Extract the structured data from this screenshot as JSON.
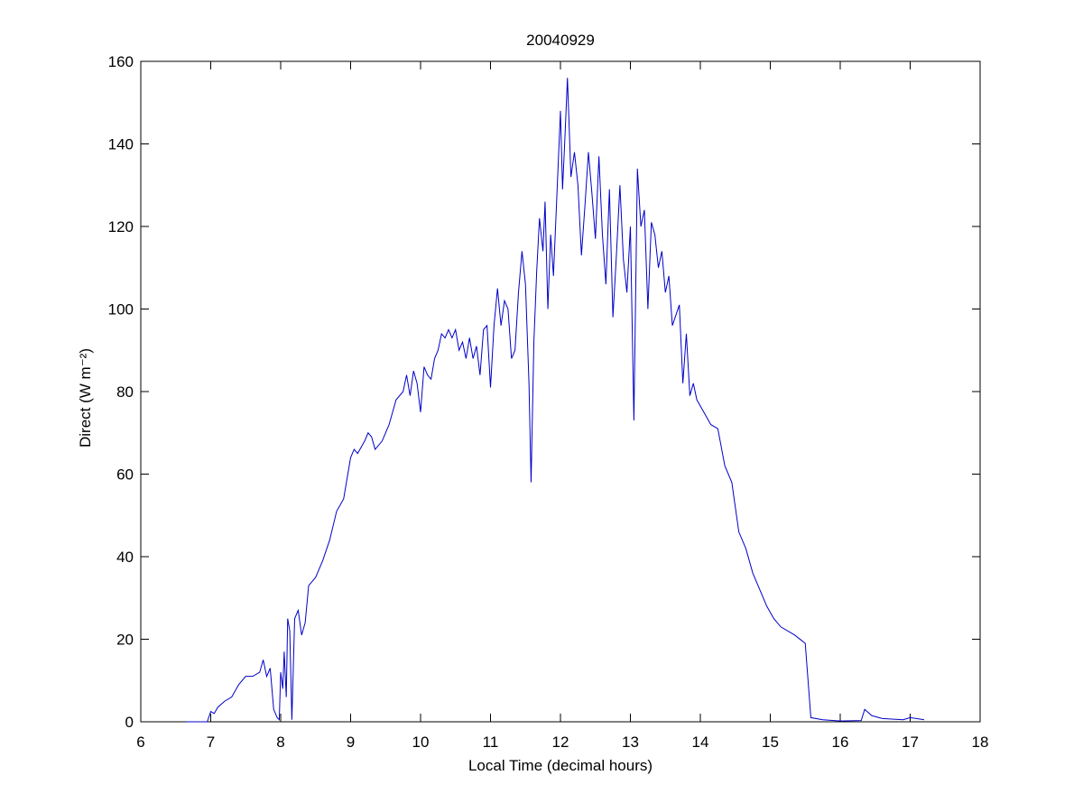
{
  "chart_data": {
    "type": "line",
    "title": "20040929",
    "x_label": "Local Time (decimal hours)",
    "y_label": "Direct (W m⁻²)",
    "xlim": [
      6,
      18
    ],
    "ylim": [
      0,
      160
    ],
    "xticks": [
      6,
      7,
      8,
      9,
      10,
      11,
      12,
      13,
      14,
      15,
      16,
      17,
      18
    ],
    "yticks": [
      0,
      20,
      40,
      60,
      80,
      100,
      120,
      140,
      160
    ],
    "grid": false,
    "series": [
      {
        "color": "#0000c8",
        "x": [
          6.65,
          6.95,
          7.0,
          7.05,
          7.1,
          7.2,
          7.3,
          7.4,
          7.5,
          7.6,
          7.7,
          7.75,
          7.8,
          7.85,
          7.9,
          7.95,
          7.98,
          8.0,
          8.03,
          8.05,
          8.08,
          8.1,
          8.13,
          8.16,
          8.2,
          8.25,
          8.3,
          8.35,
          8.4,
          8.5,
          8.6,
          8.7,
          8.8,
          8.9,
          9.0,
          9.05,
          9.1,
          9.2,
          9.25,
          9.3,
          9.35,
          9.45,
          9.55,
          9.65,
          9.75,
          9.8,
          9.85,
          9.9,
          9.95,
          10.0,
          10.05,
          10.1,
          10.15,
          10.2,
          10.25,
          10.3,
          10.35,
          10.4,
          10.45,
          10.5,
          10.55,
          10.6,
          10.65,
          10.7,
          10.75,
          10.8,
          10.85,
          10.9,
          10.95,
          11.0,
          11.05,
          11.1,
          11.15,
          11.2,
          11.25,
          11.3,
          11.35,
          11.4,
          11.45,
          11.5,
          11.55,
          11.58,
          11.62,
          11.66,
          11.7,
          11.75,
          11.78,
          11.82,
          11.86,
          11.9,
          11.95,
          12.0,
          12.03,
          12.06,
          12.1,
          12.15,
          12.2,
          12.25,
          12.3,
          12.35,
          12.4,
          12.45,
          12.5,
          12.55,
          12.6,
          12.65,
          12.7,
          12.75,
          12.8,
          12.85,
          12.9,
          12.95,
          13.0,
          13.05,
          13.1,
          13.15,
          13.2,
          13.25,
          13.3,
          13.35,
          13.4,
          13.45,
          13.5,
          13.55,
          13.6,
          13.7,
          13.75,
          13.8,
          13.85,
          13.9,
          13.95,
          14.05,
          14.15,
          14.25,
          14.35,
          14.45,
          14.55,
          14.65,
          14.75,
          14.85,
          14.95,
          15.05,
          15.15,
          15.35,
          15.5,
          15.58,
          15.75,
          16.0,
          16.3,
          16.35,
          16.45,
          16.6,
          16.9,
          17.0,
          17.2
        ],
        "values": [
          0,
          0,
          2.5,
          2,
          3.5,
          5,
          6,
          9,
          11,
          11,
          12,
          15,
          11,
          13,
          3,
          1,
          0.5,
          12,
          8,
          17,
          6,
          25,
          22,
          0.5,
          25,
          27,
          21,
          24,
          33,
          35,
          39,
          44,
          51,
          54,
          64,
          66,
          65,
          68,
          70,
          69,
          66,
          68,
          72,
          78,
          80,
          84,
          79,
          85,
          82,
          75,
          86,
          84,
          83,
          88,
          90,
          94,
          93,
          95,
          93,
          95,
          90,
          92,
          88,
          93,
          88,
          91,
          84,
          95,
          96,
          81,
          96,
          105,
          96,
          102,
          100,
          88,
          90,
          104,
          114,
          106,
          82,
          58,
          92,
          109,
          122,
          114,
          126,
          100,
          118,
          108,
          128,
          148,
          129,
          140,
          156,
          132,
          138,
          130,
          113,
          125,
          138,
          128,
          117,
          137,
          118,
          106,
          129,
          98,
          113,
          130,
          112,
          104,
          120,
          73,
          134,
          120,
          124,
          100,
          121,
          118,
          110,
          114,
          104,
          108,
          96,
          101,
          82,
          94,
          79,
          82,
          78,
          75,
          72,
          71,
          62,
          58,
          46,
          42,
          36,
          32,
          28,
          25,
          23,
          21,
          19,
          1,
          0.5,
          0.2,
          0.3,
          3,
          1.5,
          0.8,
          0.5,
          1,
          0.5
        ]
      }
    ]
  }
}
